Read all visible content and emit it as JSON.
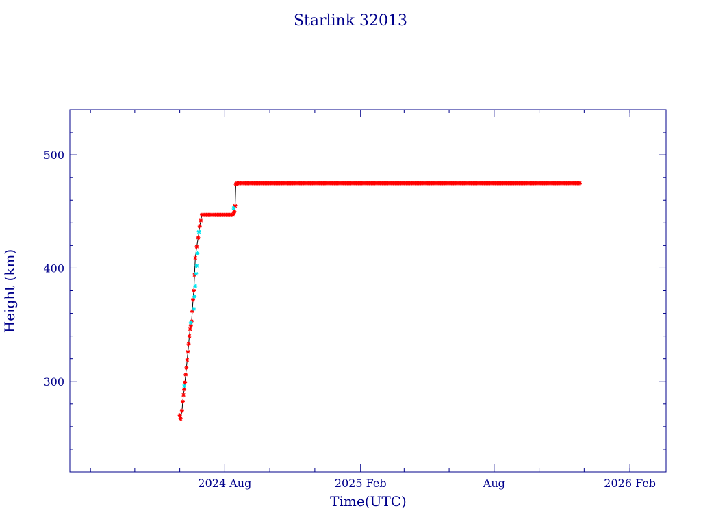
{
  "chart_data": {
    "type": "scatter",
    "title": "Starlink 32013",
    "xlabel": "Time(UTC)",
    "ylabel": "Height (km)",
    "xlim": [
      "2024-01-04",
      "2026-03-22"
    ],
    "ylim": [
      220,
      540
    ],
    "x_ticks": [
      {
        "date": "2024-08-01",
        "label": "2024 Aug"
      },
      {
        "date": "2025-02-01",
        "label": "2025 Feb"
      },
      {
        "date": "2025-08-01",
        "label": "Aug"
      },
      {
        "date": "2026-02-01",
        "label": "2026 Feb"
      }
    ],
    "x_minor_ticks": [
      "2024-02-01",
      "2024-04-01",
      "2024-06-01",
      "2024-10-01",
      "2024-12-01",
      "2025-04-01",
      "2025-06-01",
      "2025-10-01",
      "2025-12-01",
      "2026-02-01"
    ],
    "y_ticks": [
      300,
      400,
      500
    ],
    "y_minor_step": 20,
    "grid": false,
    "colors": {
      "frame": "#00008b",
      "text": "#00008b",
      "line": "#000000",
      "marker_main": "#ff0000",
      "marker_alt": "#00e5ee"
    },
    "series": [
      {
        "marker_color": "#ff0000",
        "x": [
          "2024-06-01",
          "2024-06-02",
          "2024-06-04",
          "2024-06-05",
          "2024-06-06",
          "2024-06-07",
          "2024-06-08",
          "2024-06-09",
          "2024-06-10",
          "2024-06-11",
          "2024-06-12",
          "2024-06-13",
          "2024-06-14",
          "2024-06-15",
          "2024-06-16",
          "2024-06-17",
          "2024-06-18",
          "2024-06-19",
          "2024-06-20",
          "2024-06-21",
          "2024-06-22",
          "2024-06-24",
          "2024-06-26",
          "2024-06-28",
          "2024-07-01",
          "2024-07-04",
          "2024-07-07",
          "2024-07-10",
          "2024-07-13",
          "2024-07-16",
          "2024-07-19",
          "2024-07-22",
          "2024-07-25",
          "2024-07-28",
          "2024-07-31",
          "2024-08-03",
          "2024-08-06",
          "2024-08-09",
          "2024-08-12",
          "2024-08-13",
          "2024-08-14",
          "2024-08-15",
          "2024-08-16",
          "2024-08-18",
          "2024-09-01",
          "2024-10-01",
          "2024-11-01",
          "2024-12-01",
          "2025-01-01",
          "2025-02-01",
          "2025-03-01",
          "2025-04-01",
          "2025-05-01",
          "2025-06-01",
          "2025-07-01",
          "2025-08-01",
          "2025-09-01",
          "2025-10-01",
          "2025-11-01",
          "2025-11-25"
        ],
        "y": [
          270,
          267,
          274,
          282,
          288,
          293,
          299,
          306,
          312,
          319,
          326,
          333,
          340,
          346,
          349,
          353,
          362,
          372,
          380,
          394,
          409,
          419,
          427,
          437,
          447,
          447,
          447,
          447,
          447,
          447,
          447,
          447,
          447,
          447,
          447,
          447,
          447,
          447,
          447,
          448,
          450,
          455,
          474,
          475,
          475,
          475,
          475,
          475,
          475,
          475,
          475,
          475,
          475,
          475,
          475,
          475,
          475,
          475,
          475,
          475
        ]
      },
      {
        "marker_color": "#00e5ee",
        "x": [
          "2024-06-07",
          "2024-06-16",
          "2024-06-20",
          "2024-06-21",
          "2024-06-22",
          "2024-06-23",
          "2024-06-24",
          "2024-06-25",
          "2024-06-27",
          "2024-08-13"
        ],
        "y": [
          296,
          352,
          364,
          375,
          384,
          395,
          402,
          413,
          432,
          453
        ]
      }
    ]
  }
}
